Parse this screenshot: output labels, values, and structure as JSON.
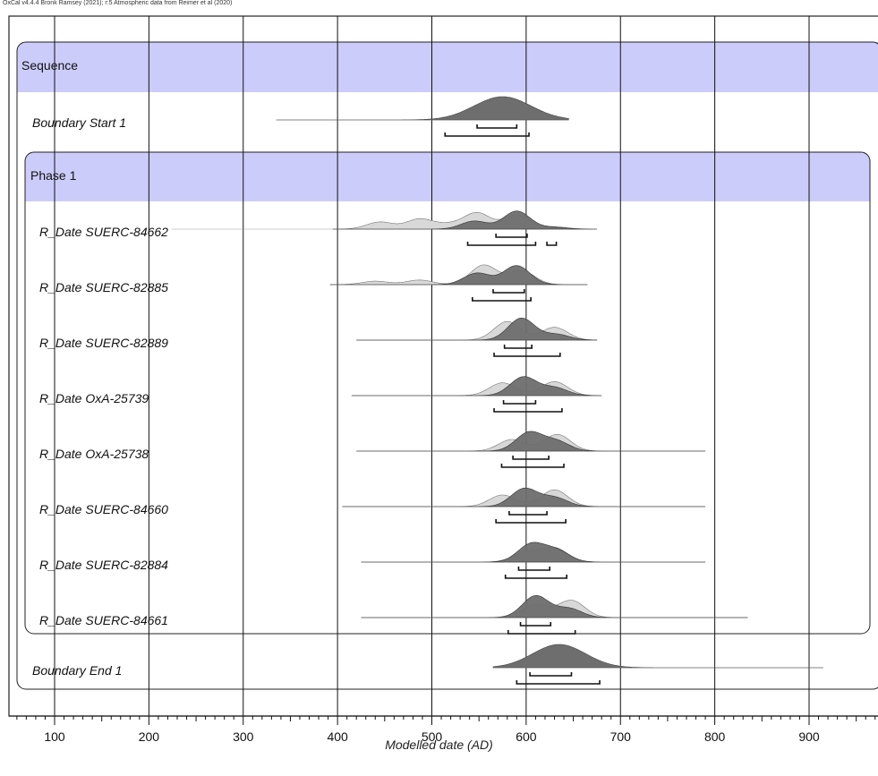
{
  "header": {
    "credit": "OxCal v4.4.4 Bronk Ramsey (2021); r:5 Atmospheric data from Reimer et al (2020)"
  },
  "chart_data": {
    "type": "oxcal-multiplot",
    "xlabel": "Modelled date (AD)",
    "x_range": [
      55,
      970
    ],
    "x_ticks": [
      100,
      200,
      300,
      400,
      500,
      600,
      700,
      800,
      900
    ],
    "grid": true,
    "colors": {
      "group_header_fill": "#ccccfa",
      "posterior_fill": "#6e6e6e",
      "likelihood_fill": "#d8d8d8",
      "frame": "#222222"
    },
    "sequence": {
      "label": "Sequence",
      "start_boundary": {
        "label": "Boundary Start 1",
        "range": [
          335,
          645
        ],
        "peaks": [
          [
            575,
            1.0
          ]
        ],
        "spread": 30,
        "hpd_68": [
          [
            548,
            590
          ]
        ],
        "hpd_95": [
          [
            514,
            603
          ]
        ]
      },
      "phase": {
        "label": "Phase 1",
        "items": [
          {
            "label": "R_Date SUERC-84662",
            "range": [
              395,
              675
            ],
            "likelihood_peaks": [
              [
                445,
                0.32
              ],
              [
                487,
                0.45
              ],
              [
                518,
                0.2
              ],
              [
                548,
                0.72
              ],
              [
                590,
                0.62
              ],
              [
                630,
                0.1
              ]
            ],
            "posterior_peaks": [
              [
                545,
                0.35
              ],
              [
                590,
                0.78
              ],
              [
                628,
                0.08
              ]
            ],
            "hpd_68": [
              [
                568,
                601
              ]
            ],
            "hpd_95": [
              [
                538,
                610
              ],
              [
                622,
                632
              ]
            ]
          },
          {
            "label": "R_Date SUERC-82885",
            "range": [
              392,
              665
            ],
            "likelihood_peaks": [
              [
                440,
                0.15
              ],
              [
                487,
                0.2
              ],
              [
                555,
                0.85
              ],
              [
                595,
                0.6
              ]
            ],
            "posterior_peaks": [
              [
                548,
                0.5
              ],
              [
                590,
                0.82
              ]
            ],
            "hpd_68": [
              [
                565,
                598
              ]
            ],
            "hpd_95": [
              [
                543,
                605
              ]
            ]
          },
          {
            "label": "R_Date SUERC-82889",
            "range": [
              420,
              675
            ],
            "likelihood_peaks": [
              [
                580,
                0.8
              ],
              [
                630,
                0.55
              ]
            ],
            "posterior_peaks": [
              [
                595,
                0.95
              ],
              [
                632,
                0.25
              ]
            ],
            "hpd_68": [
              [
                577,
                606
              ]
            ],
            "hpd_95": [
              [
                566,
                636
              ]
            ]
          },
          {
            "label": "R_Date OxA-25739",
            "range": [
              415,
              680
            ],
            "likelihood_peaks": [
              [
                575,
                0.55
              ],
              [
                630,
                0.6
              ]
            ],
            "posterior_peaks": [
              [
                597,
                0.82
              ],
              [
                630,
                0.35
              ]
            ],
            "hpd_68": [
              [
                576,
                610
              ]
            ],
            "hpd_95": [
              [
                566,
                638
              ]
            ]
          },
          {
            "label": "R_Date OxA-25738",
            "range": [
              420,
              790
            ],
            "likelihood_peaks": [
              [
                585,
                0.5
              ],
              [
                633,
                0.72
              ]
            ],
            "posterior_peaks": [
              [
                603,
                0.85
              ],
              [
                632,
                0.45
              ]
            ],
            "hpd_68": [
              [
                586,
                624
              ]
            ],
            "hpd_95": [
              [
                574,
                640
              ]
            ]
          },
          {
            "label": "R_Date  SUERC-84660",
            "range": [
              405,
              790
            ],
            "likelihood_peaks": [
              [
                575,
                0.5
              ],
              [
                630,
                0.72
              ]
            ],
            "posterior_peaks": [
              [
                598,
                0.8
              ],
              [
                630,
                0.4
              ]
            ],
            "hpd_68": [
              [
                582,
                622
              ]
            ],
            "hpd_95": [
              [
                568,
                642
              ]
            ]
          },
          {
            "label": "R_Date SUERC-82884",
            "range": [
              425,
              790
            ],
            "likelihood_peaks": [
              [
                600,
                0.45
              ],
              [
                630,
                0.65
              ]
            ],
            "posterior_peaks": [
              [
                605,
                0.85
              ],
              [
                632,
                0.55
              ]
            ],
            "hpd_68": [
              [
                592,
                625
              ]
            ],
            "hpd_95": [
              [
                578,
                643
              ]
            ]
          },
          {
            "label": "R_Date SUERC-84661",
            "range": [
              425,
              835
            ],
            "likelihood_peaks": [
              [
                610,
                0.55
              ],
              [
                648,
                0.75
              ]
            ],
            "posterior_peaks": [
              [
                610,
                0.95
              ],
              [
                645,
                0.4
              ]
            ],
            "hpd_68": [
              [
                594,
                626
              ]
            ],
            "hpd_95": [
              [
                581,
                652
              ]
            ]
          }
        ]
      },
      "end_boundary": {
        "label": "Boundary End 1",
        "range": [
          565,
          915
        ],
        "peaks": [
          [
            635,
            1.0
          ]
        ],
        "spread": 28,
        "hpd_68": [
          [
            604,
            648
          ]
        ],
        "hpd_95": [
          [
            590,
            678
          ]
        ]
      }
    }
  }
}
